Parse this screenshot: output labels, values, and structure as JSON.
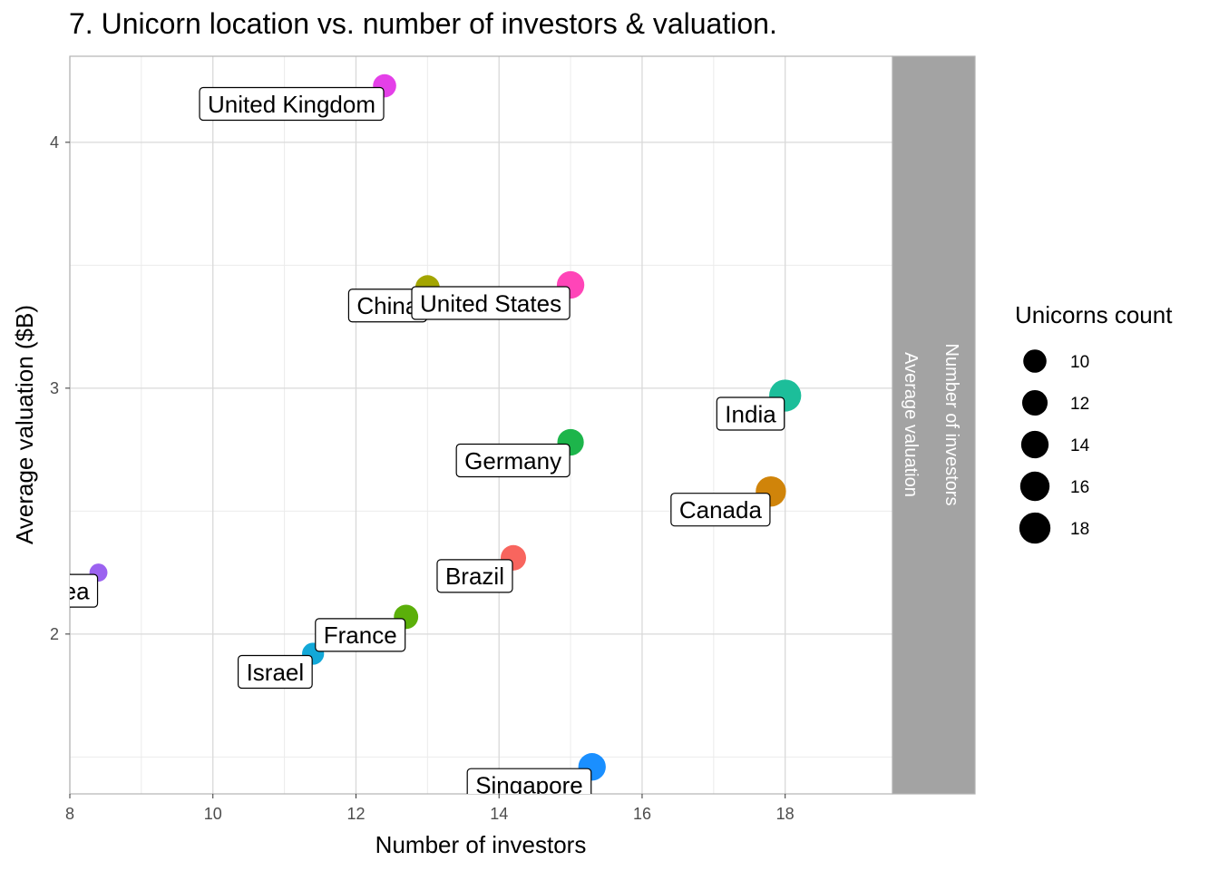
{
  "chart_data": {
    "type": "scatter",
    "title": "7. Unicorn location vs. number of investors & valuation.",
    "xlabel": "Number of investors",
    "ylabel": "Average valuation ($B)",
    "xlim": [
      8,
      19.5
    ],
    "ylim": [
      1.35,
      4.35
    ],
    "x_ticks": [
      8,
      10,
      12,
      14,
      16,
      18
    ],
    "y_ticks": [
      2,
      3,
      4
    ],
    "grid": true,
    "strip_labels": [
      "Number of investors",
      "Average valuation"
    ],
    "size_legend": {
      "title": "Unicorns count",
      "values": [
        10,
        12,
        14,
        16,
        18
      ],
      "placement": "right"
    },
    "points": [
      {
        "label": "United Kingdom",
        "x": 12.4,
        "y": 4.23,
        "count": 10,
        "color": "#E440E8"
      },
      {
        "label": "China",
        "x": 13.0,
        "y": 3.41,
        "count": 11,
        "color": "#A3A500"
      },
      {
        "label": "United States",
        "x": 15.0,
        "y": 3.42,
        "count": 14,
        "color": "#FF45B8"
      },
      {
        "label": "India",
        "x": 18.0,
        "y": 2.97,
        "count": 19,
        "color": "#1CBE9A"
      },
      {
        "label": "Germany",
        "x": 15.0,
        "y": 2.78,
        "count": 13,
        "color": "#1DB54B"
      },
      {
        "label": "Canada",
        "x": 17.8,
        "y": 2.58,
        "count": 17,
        "color": "#D0840A"
      },
      {
        "label": "Brazil",
        "x": 14.2,
        "y": 2.31,
        "count": 12,
        "color": "#F8655E"
      },
      {
        "label": "South Korea",
        "x": 8.4,
        "y": 2.25,
        "count": 6,
        "color": "#9B62F0"
      },
      {
        "label": "France",
        "x": 12.7,
        "y": 2.07,
        "count": 11,
        "color": "#5BAF0A"
      },
      {
        "label": "Israel",
        "x": 11.4,
        "y": 1.92,
        "count": 9,
        "color": "#12A8D8"
      },
      {
        "label": "Singapore",
        "x": 15.3,
        "y": 1.46,
        "count": 14,
        "color": "#1A8FFF"
      }
    ]
  }
}
